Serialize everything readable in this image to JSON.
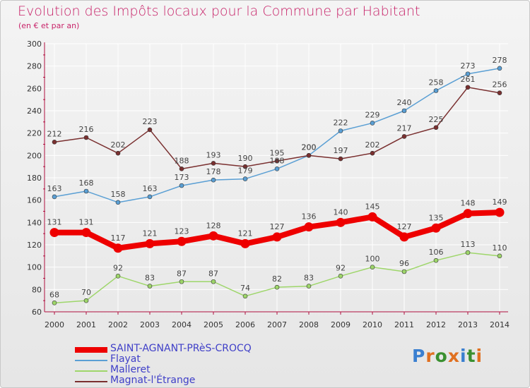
{
  "title": "Evolution des Impôts locaux pour la Commune par Habitant",
  "subtitle": "(en € et par an)",
  "logo_text": "Proxiti",
  "colors": {
    "title": "#c8246a",
    "legend_text": "#4040c8",
    "axis": "#b01040",
    "label": "#444444",
    "logo": [
      "#3a7fd0",
      "#e07020",
      "#3a9030",
      "#e07020",
      "#3a7fd0",
      "#3a9030",
      "#e07020"
    ]
  },
  "chart_data": {
    "type": "line",
    "x": [
      2000,
      2001,
      2002,
      2003,
      2004,
      2005,
      2006,
      2007,
      2008,
      2009,
      2010,
      2011,
      2012,
      2013,
      2014
    ],
    "ylim": [
      60,
      300
    ],
    "yticks": [
      60,
      80,
      100,
      120,
      140,
      160,
      180,
      200,
      220,
      240,
      260,
      280,
      300
    ],
    "grid": true,
    "legend_position": "bottom-left",
    "series": [
      {
        "name": "SAINT-AGNANT-PRèS-CROCQ",
        "color": "#ee0000",
        "emphasis": true,
        "values": [
          131,
          131,
          117,
          121,
          123,
          128,
          121,
          127,
          136,
          140,
          145,
          127,
          135,
          148,
          149
        ]
      },
      {
        "name": "Flayat",
        "color": "#5a9fd4",
        "emphasis": false,
        "values": [
          163,
          168,
          158,
          163,
          173,
          178,
          179,
          188,
          200,
          222,
          229,
          240,
          258,
          273,
          278
        ]
      },
      {
        "name": "Malleret",
        "color": "#9ed66a",
        "emphasis": false,
        "values": [
          68,
          70,
          92,
          83,
          87,
          87,
          74,
          82,
          83,
          92,
          100,
          96,
          106,
          113,
          110
        ]
      },
      {
        "name": "Magnat-l'Étrange",
        "color": "#7a3030",
        "emphasis": false,
        "values": [
          212,
          216,
          202,
          223,
          188,
          193,
          190,
          195,
          200,
          197,
          202,
          217,
          225,
          261,
          256
        ]
      }
    ]
  }
}
